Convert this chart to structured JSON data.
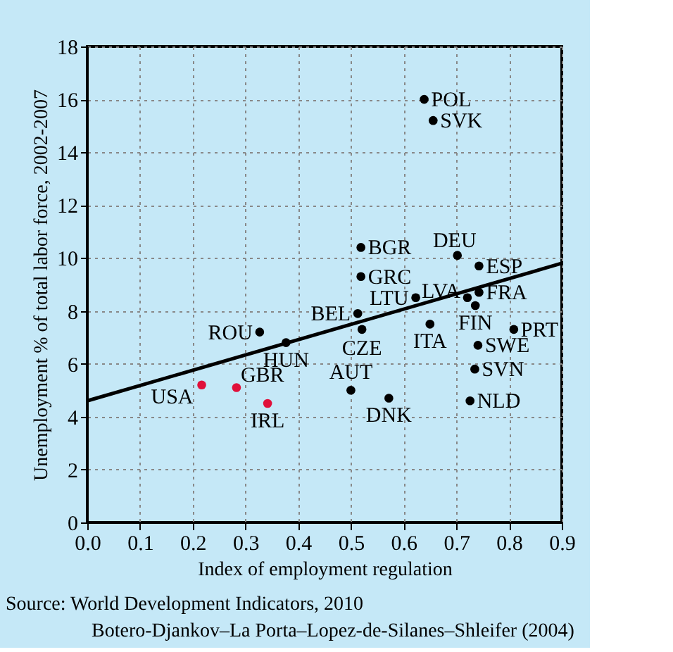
{
  "chart_data": {
    "type": "scatter",
    "xlabel": "Index of employment regulation",
    "ylabel": "Unemployment % of total labor force, 2002-2007",
    "xlim": [
      0,
      0.9
    ],
    "xticks": [
      {
        "value": 0,
        "label": "0.0"
      },
      {
        "value": 0.1,
        "label": "0.1"
      },
      {
        "value": 0.2,
        "label": "0.2"
      },
      {
        "value": 0.3,
        "label": "0.3"
      },
      {
        "value": 0.4,
        "label": "0.4"
      },
      {
        "value": 0.5,
        "label": "0.5"
      },
      {
        "value": 0.6,
        "label": "0.6"
      },
      {
        "value": 0.7,
        "label": "0.7"
      },
      {
        "value": 0.8,
        "label": "0.8"
      },
      {
        "value": 0.9,
        "label": "0.9"
      }
    ],
    "ylim": [
      0,
      18
    ],
    "yticks": [
      0,
      2,
      4,
      6,
      8,
      10,
      12,
      14,
      16,
      18
    ],
    "grid": true,
    "marker": "circle",
    "series": [
      {
        "color": "#000000",
        "x": [
          0.639,
          0.656,
          0.519,
          0.702,
          0.743,
          0.519,
          0.623,
          0.721,
          0.743,
          0.736,
          0.513,
          0.521,
          0.65,
          0.809,
          0.327,
          0.377,
          0.741,
          0.735,
          0.5,
          0.572,
          0.726
        ],
        "values": [
          16.0,
          15.2,
          10.4,
          10.1,
          9.7,
          9.3,
          8.5,
          8.5,
          8.7,
          8.2,
          7.9,
          7.3,
          7.5,
          7.3,
          7.2,
          6.8,
          6.7,
          5.8,
          5.0,
          4.7,
          4.6
        ]
      },
      {
        "color": "#e0103a",
        "x": [
          0.217,
          0.283,
          0.342
        ],
        "values": [
          5.2,
          5.1,
          4.5
        ]
      },
      {
        "type": "line",
        "color": "#000000",
        "line_style": "solid",
        "marker": "none",
        "x": [
          0,
          0.9
        ],
        "values": [
          4.6,
          9.8
        ]
      }
    ],
    "annotations": [
      {
        "text": "POL",
        "x": 0.639,
        "y": 16.0
      },
      {
        "text": "SVK",
        "x": 0.656,
        "y": 15.2
      },
      {
        "text": "BGR",
        "x": 0.519,
        "y": 10.4
      },
      {
        "text": "DEU",
        "x": 0.702,
        "y": 10.1
      },
      {
        "text": "ESP",
        "x": 0.743,
        "y": 9.7
      },
      {
        "text": "GRC",
        "x": 0.519,
        "y": 9.3
      },
      {
        "text": "LTU",
        "x": 0.623,
        "y": 8.5
      },
      {
        "text": "LVA",
        "x": 0.721,
        "y": 8.5
      },
      {
        "text": "FRA",
        "x": 0.743,
        "y": 8.7
      },
      {
        "text": "FIN",
        "x": 0.736,
        "y": 8.2
      },
      {
        "text": "BEL",
        "x": 0.513,
        "y": 7.9
      },
      {
        "text": "CZE",
        "x": 0.521,
        "y": 7.3
      },
      {
        "text": "ITA",
        "x": 0.65,
        "y": 7.5
      },
      {
        "text": "PRT",
        "x": 0.809,
        "y": 7.3
      },
      {
        "text": "ROU",
        "x": 0.327,
        "y": 7.2
      },
      {
        "text": "HUN",
        "x": 0.377,
        "y": 6.8
      },
      {
        "text": "SWE",
        "x": 0.741,
        "y": 6.7
      },
      {
        "text": "SVN",
        "x": 0.735,
        "y": 5.8
      },
      {
        "text": "AUT",
        "x": 0.5,
        "y": 5.0
      },
      {
        "text": "DNK",
        "x": 0.572,
        "y": 4.7
      },
      {
        "text": "NLD",
        "x": 0.726,
        "y": 4.6
      },
      {
        "text": "USA",
        "x": 0.217,
        "y": 5.2
      },
      {
        "text": "GBR",
        "x": 0.283,
        "y": 5.1
      },
      {
        "text": "IRL",
        "x": 0.342,
        "y": 4.5
      },
      "Source:  World Development Indicators, 2010",
      "Botero-Djankov–La Porta–Lopez-de-Silanes–Shleifer (2004)"
    ]
  }
}
